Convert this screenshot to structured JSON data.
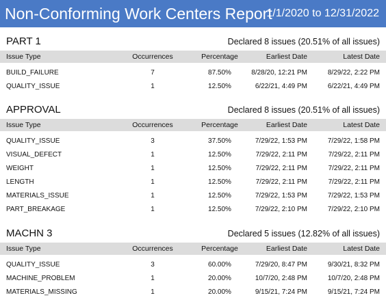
{
  "report": {
    "title": "Non-Conforming Work Centers Report",
    "date_range": "1/1/2020 to 12/31/2022"
  },
  "columns": [
    "Issue Type",
    "Occurrences",
    "Percentage",
    "Earliest Date",
    "Latest Date"
  ],
  "colors": {
    "banner": "#4a7ac6",
    "header_row": "#dcdcdc"
  },
  "sections": [
    {
      "name": "PART 1",
      "declared": "Declared 8 issues (20.51% of all issues)",
      "rows": [
        [
          "BUILD_FAILURE",
          "7",
          "87.50%",
          "8/28/20, 12:21 PM",
          "8/29/22, 2:22 PM"
        ],
        [
          "QUALITY_ISSUE",
          "1",
          "12.50%",
          "6/22/21, 4:49 PM",
          "6/22/21, 4:49 PM"
        ]
      ]
    },
    {
      "name": "APPROVAL",
      "declared": "Declared 8 issues (20.51% of all issues)",
      "rows": [
        [
          "QUALITY_ISSUE",
          "3",
          "37.50%",
          "7/29/22, 1:53 PM",
          "7/29/22, 1:58 PM"
        ],
        [
          "VISUAL_DEFECT",
          "1",
          "12.50%",
          "7/29/22, 2:11 PM",
          "7/29/22, 2:11 PM"
        ],
        [
          "WEIGHT",
          "1",
          "12.50%",
          "7/29/22, 2:11 PM",
          "7/29/22, 2:11 PM"
        ],
        [
          "LENGTH",
          "1",
          "12.50%",
          "7/29/22, 2:11 PM",
          "7/29/22, 2:11 PM"
        ],
        [
          "MATERIALS_ISSUE",
          "1",
          "12.50%",
          "7/29/22, 1:53 PM",
          "7/29/22, 1:53 PM"
        ],
        [
          "PART_BREAKAGE",
          "1",
          "12.50%",
          "7/29/22, 2:10 PM",
          "7/29/22, 2:10 PM"
        ]
      ]
    },
    {
      "name": "MACHN 3",
      "declared": "Declared 5 issues (12.82% of all issues)",
      "rows": [
        [
          "QUALITY_ISSUE",
          "3",
          "60.00%",
          "7/29/20, 8:47 PM",
          "9/30/21, 8:32 PM"
        ],
        [
          "MACHINE_PROBLEM",
          "1",
          "20.00%",
          "10/7/20, 2:48 PM",
          "10/7/20, 2:48 PM"
        ],
        [
          "MATERIALS_MISSING",
          "1",
          "20.00%",
          "9/15/21, 7:24 PM",
          "9/15/21, 7:24 PM"
        ]
      ]
    }
  ]
}
